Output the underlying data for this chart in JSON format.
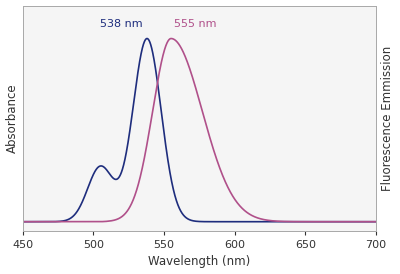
{
  "xmin": 450,
  "xmax": 700,
  "xlabel": "Wavelength (nm)",
  "ylabel_left": "Absorbance",
  "ylabel_right": "Fluorescence Emmission",
  "abs_peak": 538,
  "abs_color": "#1e2d7d",
  "fluor_peak": 555,
  "fluor_color": "#b0508a",
  "abs_label": "538 nm",
  "fluor_label": "555 nm",
  "abs_label_color": "#1e2d7d",
  "fluor_label_color": "#b0508a",
  "bg_color": "#ffffff",
  "plot_bg": "#f5f5f5",
  "xticks": [
    450,
    500,
    550,
    600,
    650,
    700
  ],
  "figsize": [
    4.0,
    2.74
  ],
  "dpi": 100
}
